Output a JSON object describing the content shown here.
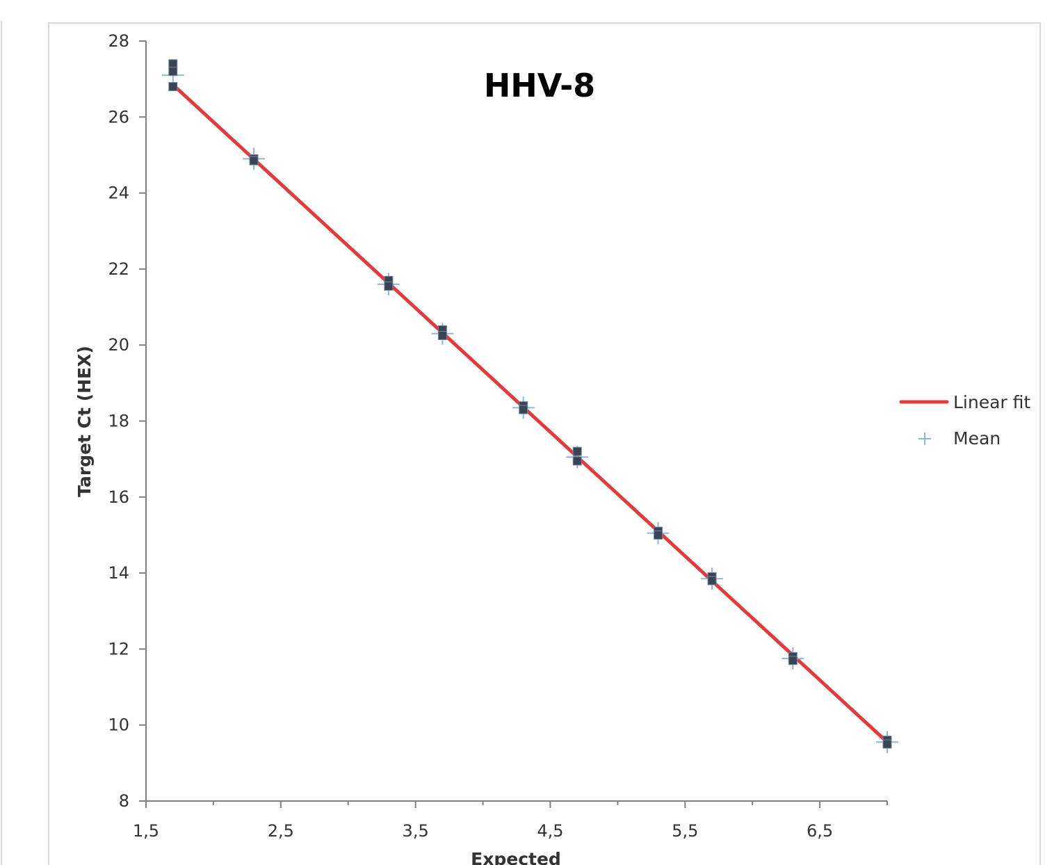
{
  "chart_data": {
    "type": "scatter",
    "title": "HHV-8",
    "xlabel": "Expected",
    "ylabel": "Target Ct (HEX)",
    "xlim": [
      1.5,
      7.0
    ],
    "ylim": [
      8,
      28
    ],
    "x_ticks": [
      "1,5",
      "2,5",
      "3,5",
      "4,5",
      "5,5",
      "6,5"
    ],
    "y_ticks": [
      "8",
      "10",
      "12",
      "14",
      "16",
      "18",
      "20",
      "22",
      "24",
      "26",
      "28"
    ],
    "grid": false,
    "legend_position": "right",
    "legend": [
      {
        "label": "Linear fit",
        "type": "line",
        "color": "#e03c3c"
      },
      {
        "label": "Mean",
        "type": "plus",
        "color": "#8fb4e3"
      }
    ],
    "series": [
      {
        "kind": "replicates",
        "color": "#3a4452",
        "points": [
          {
            "x": 1.7,
            "y": 27.4
          },
          {
            "x": 1.7,
            "y": 27.2
          },
          {
            "x": 1.7,
            "y": 26.8
          },
          {
            "x": 2.3,
            "y": 24.9
          },
          {
            "x": 2.3,
            "y": 24.85
          },
          {
            "x": 3.3,
            "y": 21.7
          },
          {
            "x": 3.3,
            "y": 21.55
          },
          {
            "x": 3.7,
            "y": 20.4
          },
          {
            "x": 3.7,
            "y": 20.25
          },
          {
            "x": 4.3,
            "y": 18.4
          },
          {
            "x": 4.3,
            "y": 18.3
          },
          {
            "x": 4.7,
            "y": 17.2
          },
          {
            "x": 4.7,
            "y": 16.95
          },
          {
            "x": 5.3,
            "y": 15.1
          },
          {
            "x": 5.3,
            "y": 15.0
          },
          {
            "x": 5.7,
            "y": 13.9
          },
          {
            "x": 5.7,
            "y": 13.8
          },
          {
            "x": 6.3,
            "y": 11.8
          },
          {
            "x": 6.3,
            "y": 11.7
          },
          {
            "x": 7.0,
            "y": 9.6
          },
          {
            "x": 7.0,
            "y": 9.5
          }
        ]
      },
      {
        "name": "Mean",
        "kind": "mean",
        "color": "#8fb4e3",
        "points": [
          {
            "x": 1.7,
            "y": 27.1
          },
          {
            "x": 2.3,
            "y": 24.9
          },
          {
            "x": 3.3,
            "y": 21.6
          },
          {
            "x": 3.7,
            "y": 20.3
          },
          {
            "x": 4.3,
            "y": 18.35
          },
          {
            "x": 4.7,
            "y": 17.05
          },
          {
            "x": 5.3,
            "y": 15.05
          },
          {
            "x": 5.7,
            "y": 13.85
          },
          {
            "x": 6.3,
            "y": 11.75
          },
          {
            "x": 7.0,
            "y": 9.55
          }
        ]
      },
      {
        "name": "Linear fit",
        "kind": "fit",
        "color": "#e03c3c",
        "x": [
          1.7,
          7.0
        ],
        "y": [
          26.85,
          9.55
        ]
      }
    ]
  }
}
